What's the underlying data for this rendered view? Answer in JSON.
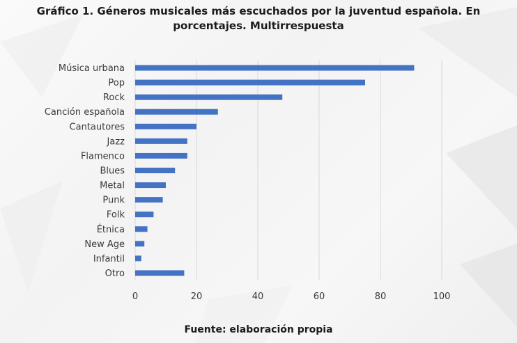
{
  "title_line1": "Gráfico 1. Géneros musicales más escuchados por la juventud española. En",
  "title_line2": "porcentajes. Multirrespuesta",
  "source": "Fuente: elaboración propia",
  "bar_color": "#4472c4",
  "grid_color": "#d9d9d9",
  "chart_data": {
    "type": "bar",
    "orientation": "horizontal",
    "title": "Gráfico 1. Géneros musicales más escuchados por la juventud española. En porcentajes. Multirrespuesta",
    "categories": [
      "Música urbana",
      "Pop",
      "Rock",
      "Canción española",
      "Cantautores",
      "Jazz",
      "Flamenco",
      "Blues",
      "Metal",
      "Punk",
      "Folk",
      "Étnica",
      "New Age",
      "Infantil",
      "Otro"
    ],
    "values": [
      91,
      75,
      48,
      27,
      20,
      17,
      17,
      13,
      10,
      9,
      6,
      4,
      3,
      2,
      16
    ],
    "xlim": [
      0,
      100
    ],
    "xticks": [
      "0",
      "20",
      "40",
      "60",
      "80",
      "100"
    ],
    "xlabel": "",
    "ylabel": "",
    "grid": true,
    "legend": "none"
  }
}
